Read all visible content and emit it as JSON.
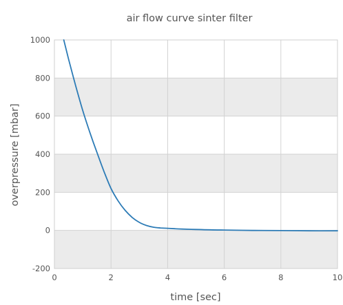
{
  "chart_data": {
    "type": "line",
    "title": "air flow curve sinter filter",
    "xlabel": "time  [sec]",
    "ylabel": "overpressure [mbar]",
    "xlim": [
      0,
      10
    ],
    "ylim": [
      -200,
      1000
    ],
    "xticks": [
      0,
      2,
      4,
      6,
      8,
      10
    ],
    "yticks": [
      -200,
      0,
      200,
      400,
      600,
      800,
      1000
    ],
    "grid": true,
    "band_color": "#ebebeb",
    "line_color": "#2c7bb6",
    "series": [
      {
        "x": [
          0.33,
          0.5,
          0.75,
          1.0,
          1.25,
          1.5,
          1.75,
          2.0,
          2.25,
          2.5,
          2.75,
          3.0,
          3.25,
          3.5,
          3.75,
          4.0,
          4.25,
          4.5,
          5.0,
          5.5,
          6.0,
          7.0,
          8.0,
          9.0,
          10.0
        ],
        "y": [
          1000,
          900,
          760,
          630,
          515,
          410,
          310,
          220,
          155,
          105,
          68,
          42,
          26,
          17,
          13,
          11,
          9,
          7,
          5,
          3,
          2,
          0,
          -1,
          -2,
          -2
        ]
      }
    ]
  }
}
